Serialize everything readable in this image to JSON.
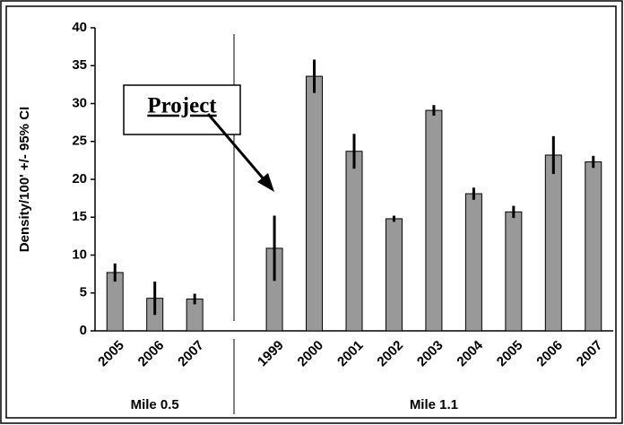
{
  "chart_data": {
    "type": "bar",
    "y_label": "Density/100' +/- 95% CI",
    "categories": [
      "2005",
      "2006",
      "2007",
      null,
      "1999",
      "2000",
      "2001",
      "2002",
      "2003",
      "2004",
      "2005",
      "2006",
      "2007"
    ],
    "values": [
      7.7,
      4.3,
      4.2,
      null,
      10.9,
      33.6,
      23.7,
      14.8,
      29.1,
      18.1,
      15.7,
      23.2,
      22.3
    ],
    "errors": [
      1.2,
      2.2,
      0.7,
      null,
      4.3,
      2.2,
      2.3,
      0.4,
      0.7,
      0.8,
      0.8,
      2.5,
      0.8
    ],
    "groups": [
      "Mile 0.5",
      "Mile 1.1"
    ],
    "annotation": "Project",
    "color": "#999999",
    "ylim": [
      0,
      40
    ],
    "yticks": [
      0,
      5,
      10,
      15,
      20,
      25,
      30,
      35,
      40
    ]
  }
}
